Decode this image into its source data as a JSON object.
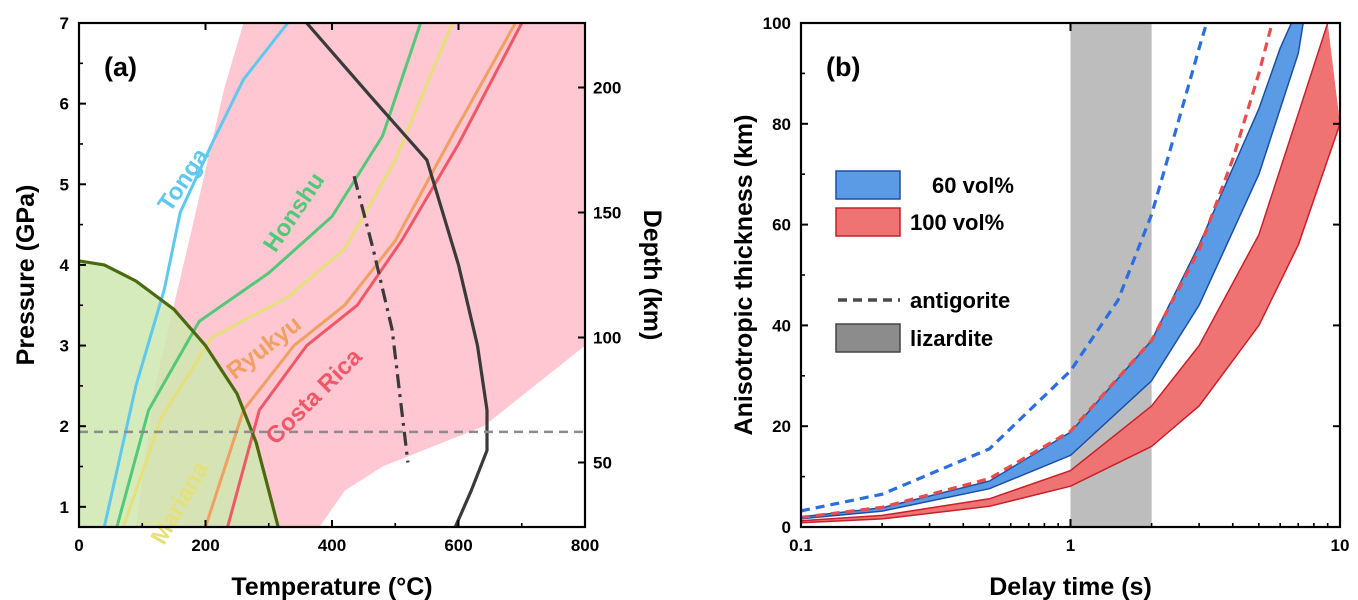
{
  "chart_data": [
    {
      "panel_label": "(a)",
      "type": "line",
      "xlabel": "Temperature (°C)",
      "ylabel": "Pressure (GPa)",
      "y2label": "Depth (km)",
      "xlim": [
        0,
        800
      ],
      "ylim": [
        0.75,
        7
      ],
      "x_ticks": [
        "0",
        "200",
        "400",
        "600",
        "800"
      ],
      "y_ticks": [
        "1",
        "2",
        "3",
        "4",
        "5",
        "6",
        "7"
      ],
      "y2_ticks": [
        {
          "label": "50",
          "pressure": 1.55
        },
        {
          "label": "100",
          "pressure": 3.1
        },
        {
          "label": "150",
          "pressure": 4.65
        },
        {
          "label": "200",
          "pressure": 6.2
        }
      ],
      "regions": [
        {
          "name": "serpentine stability field",
          "color": "#ffc7d2",
          "points": [
            [
              90,
              0.75
            ],
            [
              120,
              2.5
            ],
            [
              180,
              4.5
            ],
            [
              230,
              6.2
            ],
            [
              260,
              7
            ],
            [
              800,
              7
            ],
            [
              800,
              3.0
            ],
            [
              720,
              2.5
            ],
            [
              640,
              2.0
            ],
            [
              560,
              1.75
            ],
            [
              480,
              1.5
            ],
            [
              420,
              1.2
            ],
            [
              380,
              0.75
            ]
          ]
        },
        {
          "name": "green field",
          "color": "#cfe7b0",
          "points": [
            [
              0,
              4.05
            ],
            [
              0,
              0.75
            ],
            [
              315,
              0.75
            ],
            [
              300,
              1.2
            ],
            [
              280,
              1.8
            ],
            [
              250,
              2.4
            ],
            [
              200,
              3.0
            ],
            [
              150,
              3.45
            ],
            [
              90,
              3.8
            ],
            [
              40,
              4.0
            ],
            [
              0,
              4.05
            ]
          ]
        }
      ],
      "series": [
        {
          "name": "Tonga",
          "color": "#5ec8ef",
          "points": [
            [
              40,
              0.75
            ],
            [
              90,
              2.5
            ],
            [
              135,
              3.7
            ],
            [
              160,
              4.65
            ],
            [
              210,
              5.5
            ],
            [
              260,
              6.3
            ],
            [
              330,
              7
            ]
          ]
        },
        {
          "name": "Honshu",
          "color": "#52c878",
          "points": [
            [
              60,
              0.75
            ],
            [
              110,
              2.2
            ],
            [
              190,
              3.3
            ],
            [
              300,
              3.9
            ],
            [
              400,
              4.6
            ],
            [
              480,
              5.6
            ],
            [
              540,
              7
            ]
          ]
        },
        {
          "name": "Mariana",
          "color": "#e6e07a",
          "points": [
            [
              70,
              0.75
            ],
            [
              130,
              2.1
            ],
            [
              210,
              3.1
            ],
            [
              330,
              3.6
            ],
            [
              420,
              4.2
            ],
            [
              500,
              5.3
            ],
            [
              590,
              7
            ]
          ]
        },
        {
          "name": "Ryukyu",
          "color": "#f0a060",
          "points": [
            [
              200,
              0.75
            ],
            [
              260,
              2.2
            ],
            [
              340,
              3.0
            ],
            [
              420,
              3.5
            ],
            [
              500,
              4.3
            ],
            [
              590,
              5.6
            ],
            [
              690,
              7
            ]
          ]
        },
        {
          "name": "Costa Rica",
          "color": "#f05868",
          "points": [
            [
              235,
              0.75
            ],
            [
              285,
              2.2
            ],
            [
              360,
              3.0
            ],
            [
              440,
              3.5
            ],
            [
              510,
              4.3
            ],
            [
              600,
              5.5
            ],
            [
              700,
              7
            ]
          ]
        }
      ],
      "boundaries": [
        {
          "name": "antigorite dehydration",
          "color": "#3a3a3a",
          "style": "solid",
          "points": [
            [
              360,
              7
            ],
            [
              460,
              6.1
            ],
            [
              550,
              5.3
            ],
            [
              600,
              4.0
            ],
            [
              630,
              3.0
            ],
            [
              645,
              2.2
            ],
            [
              645,
              1.7
            ],
            [
              620,
              1.2
            ],
            [
              595,
              0.75
            ]
          ]
        },
        {
          "name": "dash-dot boundary",
          "color": "#3a3a3a",
          "style": "dashdot",
          "points": [
            [
              435,
              5.1
            ],
            [
              465,
              4.2
            ],
            [
              495,
              3.2
            ],
            [
              520,
              1.55
            ]
          ]
        },
        {
          "name": "green boundary",
          "color": "#4a6a10",
          "style": "solid",
          "points": [
            [
              0,
              4.05
            ],
            [
              40,
              4.0
            ],
            [
              90,
              3.8
            ],
            [
              150,
              3.45
            ],
            [
              200,
              3.0
            ],
            [
              250,
              2.4
            ],
            [
              280,
              1.8
            ],
            [
              300,
              1.2
            ],
            [
              315,
              0.75
            ]
          ]
        }
      ],
      "hline": {
        "y": 1.93,
        "color": "#8c8c8c",
        "style": "dashed"
      },
      "curve_labels": [
        {
          "text": "Tonga",
          "color": "#5ec8ef",
          "x": 175,
          "y": 5.0,
          "angle": -56
        },
        {
          "text": "Honshu",
          "color": "#52c878",
          "x": 350,
          "y": 4.6,
          "angle": -56
        },
        {
          "text": "Ryukyu",
          "color": "#f0a060",
          "x": 300,
          "y": 2.9,
          "angle": -38
        },
        {
          "text": "Costa Rica",
          "color": "#f05868",
          "x": 380,
          "y": 2.3,
          "angle": -45
        },
        {
          "text": "Mariana",
          "color": "#e6e07a",
          "x": 170,
          "y": 1.0,
          "angle": -60
        }
      ]
    },
    {
      "panel_label": "(b)",
      "type": "line",
      "xscale": "log",
      "xlabel": "Delay time (s)",
      "ylabel": "Anisotropic thickness (km)",
      "xlim": [
        0.1,
        10
      ],
      "ylim": [
        0,
        100
      ],
      "x_ticks": [
        {
          "label": "0.1",
          "value": 0.1
        },
        {
          "label": "1",
          "value": 1
        },
        {
          "label": "10",
          "value": 10
        }
      ],
      "y_ticks": [
        "0",
        "20",
        "40",
        "60",
        "80",
        "100"
      ],
      "shaded_x": {
        "from": 1,
        "to": 2,
        "color": "#bdbdbd"
      },
      "bands": [
        {
          "name": "60 vol%",
          "fill": "#5b9be6",
          "edge": "#1c4fa3",
          "upper": [
            [
              0.1,
              2.0
            ],
            [
              0.2,
              3.8
            ],
            [
              0.5,
              9.1
            ],
            [
              1,
              18.8
            ],
            [
              2,
              37
            ],
            [
              3,
              56
            ],
            [
              5,
              83
            ],
            [
              6,
              95
            ],
            [
              6.6,
              100
            ]
          ],
          "lower": [
            [
              0.1,
              1.65
            ],
            [
              0.2,
              3.15
            ],
            [
              0.5,
              7.6
            ],
            [
              1,
              14.2
            ],
            [
              2,
              29
            ],
            [
              3,
              44
            ],
            [
              5,
              70
            ],
            [
              7,
              94
            ],
            [
              7.3,
              100
            ]
          ]
        },
        {
          "name": "100 vol%",
          "fill": "#f07373",
          "edge": "#c8202a",
          "upper": [
            [
              0.1,
              1.25
            ],
            [
              0.2,
              2.3
            ],
            [
              0.5,
              5.6
            ],
            [
              1,
              11.2
            ],
            [
              2,
              24
            ],
            [
              3,
              36
            ],
            [
              5,
              58
            ],
            [
              7,
              82
            ],
            [
              9,
              100
            ]
          ],
          "lower": [
            [
              0.1,
              0.85
            ],
            [
              0.2,
              1.6
            ],
            [
              0.5,
              4.1
            ],
            [
              1,
              8.1
            ],
            [
              2,
              16
            ],
            [
              3,
              24
            ],
            [
              5,
              40
            ],
            [
              7,
              56
            ],
            [
              10,
              80
            ]
          ]
        }
      ],
      "dashed_lines": [
        {
          "name": "antigorite 60 vol%",
          "color": "#2a6ee0",
          "points": [
            [
              0.1,
              3.2
            ],
            [
              0.2,
              6.5
            ],
            [
              0.5,
              15.5
            ],
            [
              1,
              31
            ],
            [
              1.5,
              45
            ],
            [
              2,
              62
            ],
            [
              2.5,
              80
            ],
            [
              3,
              95
            ],
            [
              3.2,
              100
            ]
          ]
        },
        {
          "name": "antigorite 100 vol%",
          "color": "#e84c4c",
          "points": [
            [
              0.1,
              1.9
            ],
            [
              0.2,
              3.9
            ],
            [
              0.5,
              9.6
            ],
            [
              1,
              19
            ],
            [
              2,
              37
            ],
            [
              3,
              55
            ],
            [
              4,
              73
            ],
            [
              5,
              90
            ],
            [
              5.6,
              100
            ]
          ]
        }
      ],
      "legend": [
        {
          "label": "60 vol%",
          "kind": "patch",
          "fill": "#5b9be6",
          "edge": "#1c4fa3"
        },
        {
          "label": "100 vol%",
          "kind": "patch",
          "fill": "#f07373",
          "edge": "#c8202a"
        },
        {
          "label": "antigorite",
          "kind": "dashed",
          "color": "#4a4a4a"
        },
        {
          "label": "lizardite",
          "kind": "patch",
          "fill": "#8c8c8c",
          "edge": "#444444"
        }
      ]
    }
  ]
}
